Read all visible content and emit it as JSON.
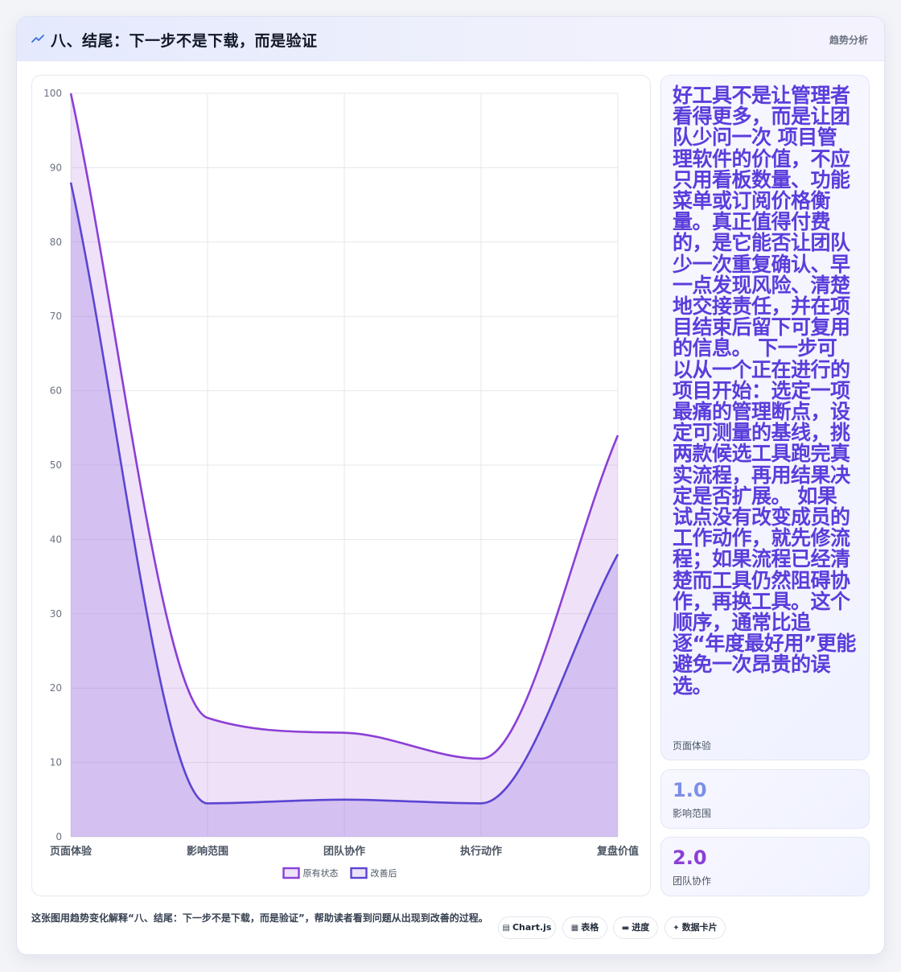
{
  "header": {
    "icon": "trend-line-icon",
    "title": "八、结尾：下一步不是下载，而是验证",
    "tag": "趋势分析"
  },
  "chart_data": {
    "type": "area",
    "categories": [
      "页面体验",
      "影响范围",
      "团队协作",
      "执行动作",
      "复盘价值"
    ],
    "series": [
      {
        "name": "原有状态",
        "values": [
          100,
          16,
          14,
          10.5,
          54
        ],
        "color": "#8b3fd6"
      },
      {
        "name": "改善后",
        "values": [
          88,
          4.5,
          5,
          4.5,
          38
        ],
        "color": "#5b45d1"
      }
    ],
    "ylim": [
      0,
      100
    ],
    "yticks": [
      0,
      10,
      20,
      30,
      40,
      50,
      60,
      70,
      80,
      90,
      100
    ],
    "grid": true,
    "legend": "bottom"
  },
  "sidebar": {
    "summary": {
      "text": "好工具不是让管理者看得更多，而是让团队少问一次 项目管理软件的价值，不应只用看板数量、功能菜单或订阅价格衡量。真正值得付费的，是它能否让团队少一次重复确认、早一点发现风险、清楚地交接责任，并在项目结束后留下可复用的信息。 下一步可以从一个正在进行的项目开始：选定一项最痛的管理断点，设定可测量的基线，挑两款候选工具跑完真实流程，再用结果决定是否扩展。 如果试点没有改变成员的工作动作，就先修流程；如果流程已经清楚而工具仍然阻碍协作，再换工具。这个顺序，通常比追逐“年度最好用”更能避免一次昂贵的误选。",
      "label": "页面体验"
    },
    "metric_1": {
      "value": "1.0",
      "label": "影响范围"
    },
    "metric_2": {
      "value": "2.0",
      "label": "团队协作"
    }
  },
  "footer": {
    "caption": "这张图用趋势变化解释“八、结尾：下一步不是下载，而是验证”，帮助读者看到问题从出现到改善的过程。",
    "chips": [
      {
        "icon": "bar-chart-icon",
        "glyph": "▤",
        "label": "Chart.js"
      },
      {
        "icon": "table-icon",
        "glyph": "▦",
        "label": "表格"
      },
      {
        "icon": "progress-icon",
        "glyph": "▬",
        "label": "进度"
      },
      {
        "icon": "sparkle-icon",
        "glyph": "✦",
        "label": "数据卡片"
      }
    ]
  }
}
